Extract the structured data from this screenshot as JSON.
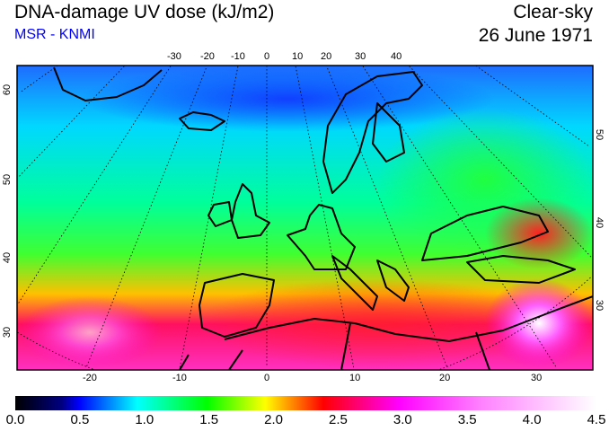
{
  "header": {
    "title": "DNA-damage UV dose (kJ/m2)",
    "source": "MSR - KNMI",
    "condition": "Clear-sky",
    "date": "26 June 1971"
  },
  "map": {
    "top_lon_ticks": [
      "-30",
      "-20",
      "-10",
      "0",
      "10",
      "20",
      "30",
      "40"
    ],
    "bottom_lon_ticks": [
      "-20",
      "-10",
      "0",
      "10",
      "20",
      "30"
    ],
    "left_lat_ticks": [
      "60",
      "50",
      "40",
      "30"
    ],
    "right_lat_ticks": [
      "50",
      "40",
      "30"
    ]
  },
  "colorbar": {
    "labels": [
      "0.0",
      "0.5",
      "1.0",
      "1.5",
      "2.0",
      "2.5",
      "3.0",
      "3.5",
      "4.0",
      "4.5"
    ],
    "min": 0,
    "max": 4.5,
    "colors": [
      "#000000",
      "#000080",
      "#0000ff",
      "#00ffff",
      "#00ff00",
      "#ffff00",
      "#ff0000",
      "#ff00ff",
      "#ffffff"
    ]
  }
}
